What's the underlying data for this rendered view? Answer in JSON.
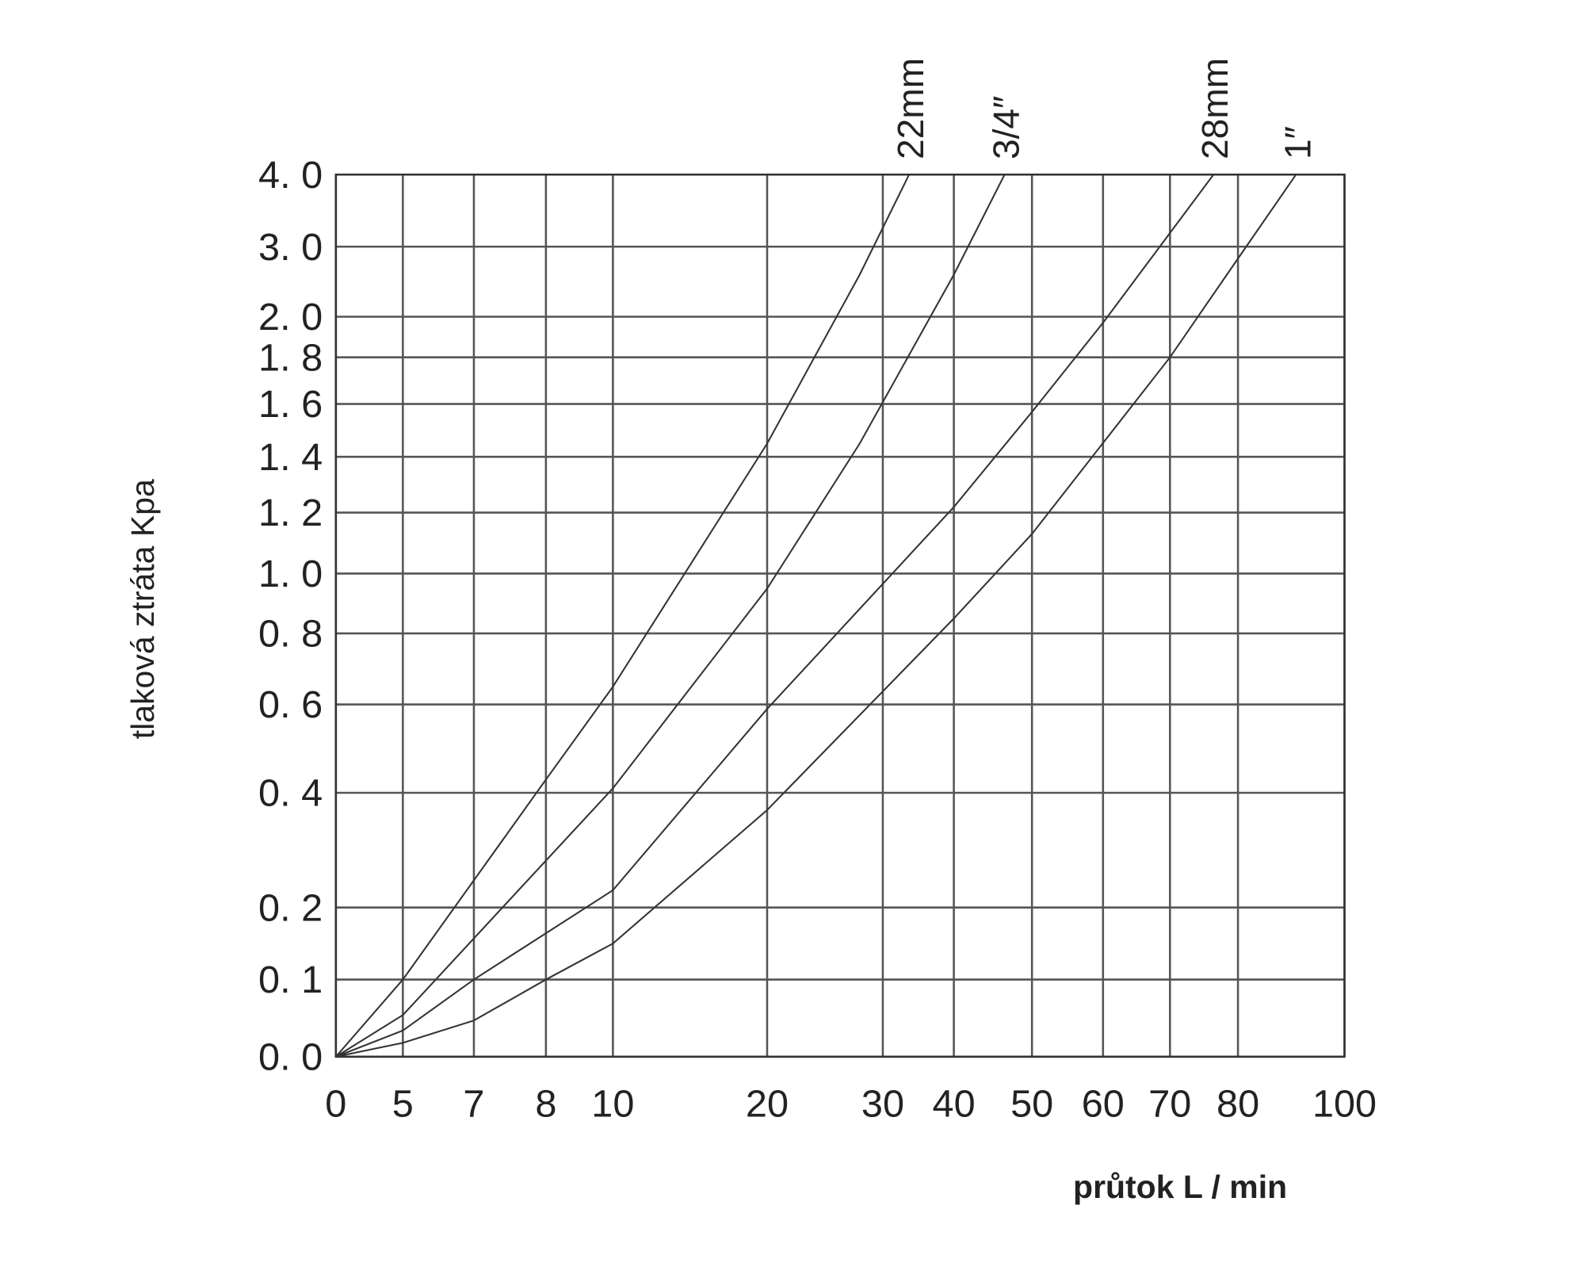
{
  "chart_data": {
    "type": "line",
    "xlabel": "průtok L / min",
    "ylabel": "tlaková ztráta Kpa",
    "xlim": [
      0,
      100
    ],
    "xticks": [
      0,
      5,
      7,
      8,
      10,
      20,
      30,
      40,
      50,
      60,
      70,
      80,
      100
    ],
    "ylim": [
      0,
      4
    ],
    "yticks": [
      {
        "value": 4,
        "label": "4. 0"
      },
      {
        "value": 3,
        "label": "3. 0"
      },
      {
        "value": 2,
        "label": "2. 0"
      },
      {
        "value": 1.8,
        "label": "1. 8"
      },
      {
        "value": 1.6,
        "label": "1. 6"
      },
      {
        "value": 1.4,
        "label": "1. 4"
      },
      {
        "value": 1.2,
        "label": "1. 2"
      },
      {
        "value": 1,
        "label": "1. 0"
      },
      {
        "value": 0.8,
        "label": "0. 8"
      },
      {
        "value": 0.6,
        "label": "0. 6"
      },
      {
        "value": 0.4,
        "label": "0. 4"
      },
      {
        "value": 0.2,
        "label": "0. 2"
      },
      {
        "value": 0.1,
        "label": "0. 1"
      },
      {
        "value": 0,
        "label": "0. 0"
      }
    ],
    "grid": true,
    "series": [
      {
        "name": "22mm",
        "color": "#333333",
        "x": [
          0,
          5,
          8,
          10,
          20,
          28,
          33.7
        ],
        "values": [
          0,
          0.1,
          0.43,
          0.65,
          1.45,
          2.6,
          4
        ]
      },
      {
        "name": "3/4″",
        "color": "#333333",
        "x": [
          0,
          5,
          10,
          20,
          28,
          40,
          46.5
        ],
        "values": [
          0,
          0.054,
          0.41,
          0.95,
          1.45,
          2.6,
          4
        ]
      },
      {
        "name": "28mm",
        "color": "#333333",
        "x": [
          0,
          5,
          7,
          10,
          20,
          40,
          50,
          60,
          76.4
        ],
        "values": [
          0,
          0.034,
          0.1,
          0.23,
          0.59,
          1.22,
          1.57,
          1.97,
          4
        ]
      },
      {
        "name": "1″",
        "color": "#333333",
        "x": [
          0,
          5,
          7,
          8,
          10,
          20,
          40,
          50,
          70,
          80,
          90.9
        ],
        "values": [
          0,
          0.018,
          0.047,
          0.1,
          0.15,
          0.37,
          0.85,
          1.13,
          1.8,
          2.83,
          4
        ]
      }
    ]
  }
}
